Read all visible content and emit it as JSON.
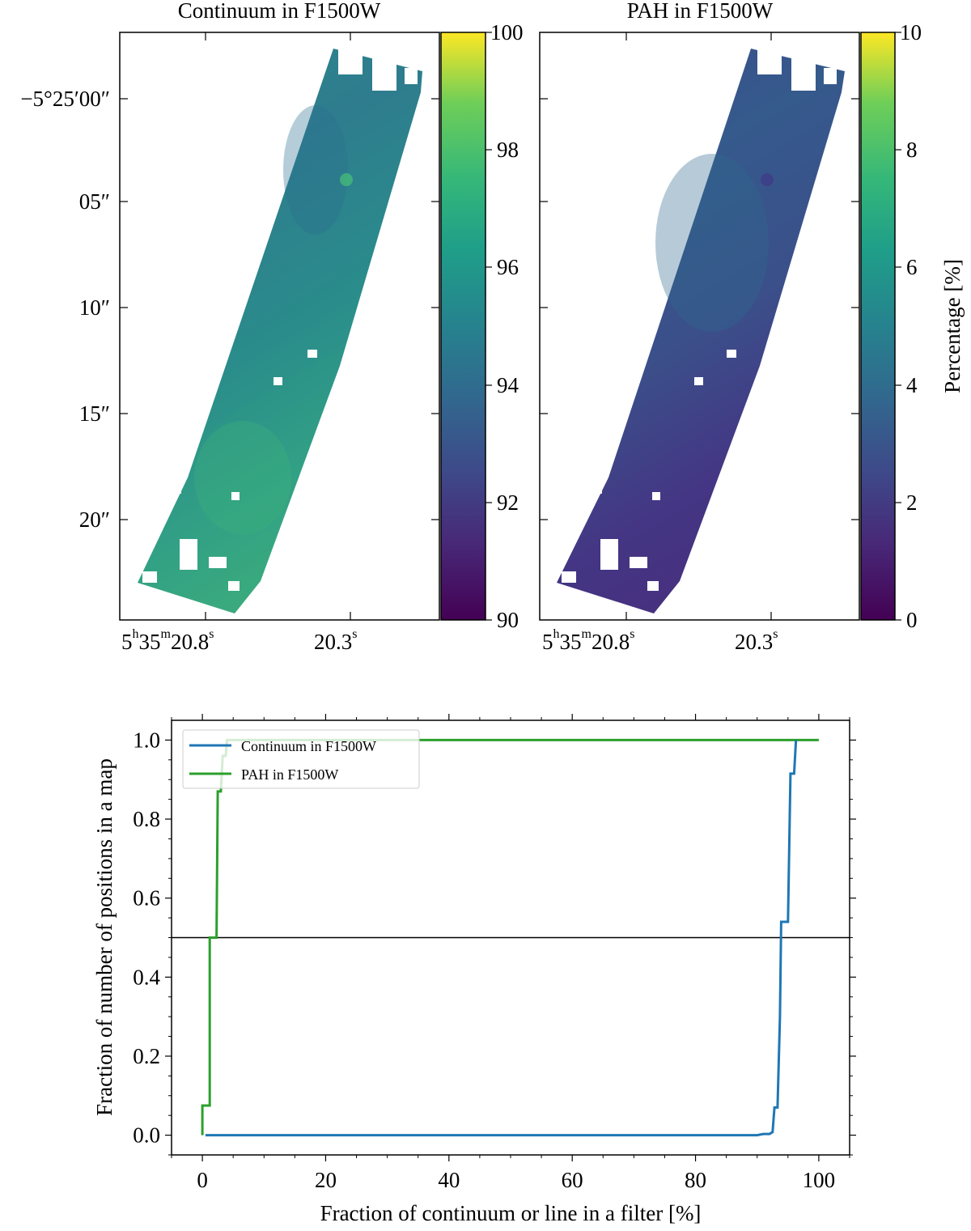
{
  "chart_data": [
    {
      "type": "heatmap",
      "title": "Continuum in F1500W",
      "colormap": "viridis",
      "colorbar": {
        "range": [
          90,
          100
        ],
        "ticks": [
          "90",
          "92",
          "94",
          "96",
          "98",
          "100"
        ],
        "label": ""
      },
      "dec_ticks": [
        "−5°25′00″",
        "05″",
        "10″",
        "15″",
        "20″"
      ],
      "ra_ticks": [
        {
          "h": "5",
          "hs": "h",
          "m": "35",
          "ms": "m",
          "s": "20.8",
          "ss": "s"
        },
        {
          "s": "20.3",
          "ss": "s"
        }
      ],
      "map_value_range": [
        94,
        97
      ],
      "map_mean_value": 95.5
    },
    {
      "type": "heatmap",
      "title": "PAH in F1500W",
      "colormap": "viridis",
      "colorbar": {
        "range": [
          0,
          10
        ],
        "ticks": [
          "0",
          "2",
          "4",
          "6",
          "8",
          "10"
        ],
        "label": "Percentage [%]"
      },
      "dec_ticks": [],
      "ra_ticks": [
        {
          "h": "5",
          "hs": "h",
          "m": "35",
          "ms": "m",
          "s": "20.8",
          "ss": "s"
        },
        {
          "s": "20.3",
          "ss": "s"
        }
      ],
      "map_value_range": [
        1,
        4
      ],
      "map_mean_value": 2.5
    },
    {
      "type": "line",
      "xlabel": "Fraction of continuum or line in a filter [%]",
      "ylabel": "Fraction of number of positions in a map",
      "xlim": [
        -5,
        105
      ],
      "ylim": [
        -0.05,
        1.05
      ],
      "xticks": [
        0,
        20,
        40,
        60,
        80,
        100
      ],
      "yticks": [
        0.0,
        0.2,
        0.4,
        0.6,
        0.8,
        1.0
      ],
      "ytick_labels": [
        "0.0",
        "0.2",
        "0.4",
        "0.6",
        "0.8",
        "1.0"
      ],
      "hline": 0.5,
      "series": [
        {
          "name": "Continuum in F1500W",
          "color": "#1f77b4",
          "x": [
            0.5,
            90,
            91,
            92,
            92.5,
            92.8,
            93.3,
            93.7,
            93.9,
            94.3,
            95,
            95.4,
            96,
            96.3
          ],
          "y": [
            0.0,
            0.0,
            0.003,
            0.003,
            0.008,
            0.07,
            0.07,
            0.3,
            0.54,
            0.54,
            0.54,
            0.915,
            0.915,
            1.0
          ]
        },
        {
          "name": "PAH in F1500W",
          "color": "#2ca02c",
          "x": [
            0,
            0,
            1.2,
            1.2,
            1.5,
            2.3,
            2.5,
            3.0,
            3.3,
            3.8,
            4.0,
            100
          ],
          "y": [
            0.0,
            0.075,
            0.075,
            0.5,
            0.5,
            0.5,
            0.87,
            0.87,
            0.96,
            0.96,
            1.0,
            1.0
          ]
        }
      ]
    }
  ]
}
